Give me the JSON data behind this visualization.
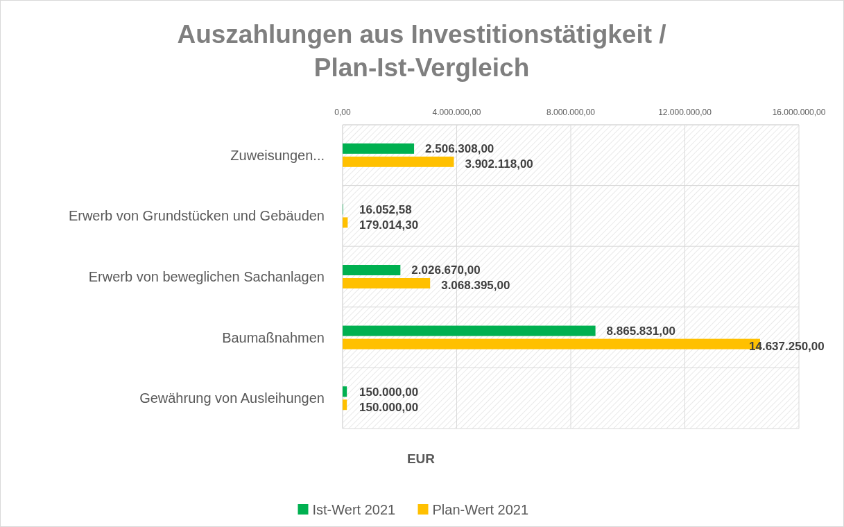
{
  "chart_data": {
    "type": "bar",
    "orientation": "horizontal",
    "title": "Auszahlungen aus Investitionstätigkeit /\nPlan-Ist-Vergleich",
    "xlabel": "EUR",
    "categories": [
      "Zuweisungen...",
      "Erwerb von Grundstücken und Gebäuden",
      "Erwerb von beweglichen Sachanlagen",
      "Baumaßnahmen",
      "Gewährung von Ausleihungen"
    ],
    "series": [
      {
        "name": "Ist-Wert 2021",
        "color": "#00b050",
        "values": [
          2506308,
          16052.58,
          2026670,
          8865831,
          150000
        ],
        "value_labels": [
          "2.506.308,00",
          "16.052,58",
          "2.026.670,00",
          "8.865.831,00",
          "150.000,00"
        ]
      },
      {
        "name": "Plan-Wert 2021",
        "color": "#ffc000",
        "values": [
          3902118,
          179014.3,
          3068395,
          14637250,
          150000
        ],
        "value_labels": [
          "3.902.118,00",
          "179.014,30",
          "3.068.395,00",
          "14.637.250,00",
          "150.000,00"
        ]
      }
    ],
    "xlim": [
      0,
      16000000
    ],
    "xticks": [
      {
        "value": 0,
        "label": "0,00"
      },
      {
        "value": 4000000,
        "label": "4.000.000,00"
      },
      {
        "value": 8000000,
        "label": "8.000.000,00"
      },
      {
        "value": 12000000,
        "label": "12.000.000,00"
      },
      {
        "value": 16000000,
        "label": "16.000.000,00"
      }
    ],
    "grid": true,
    "legend": "bottom"
  }
}
